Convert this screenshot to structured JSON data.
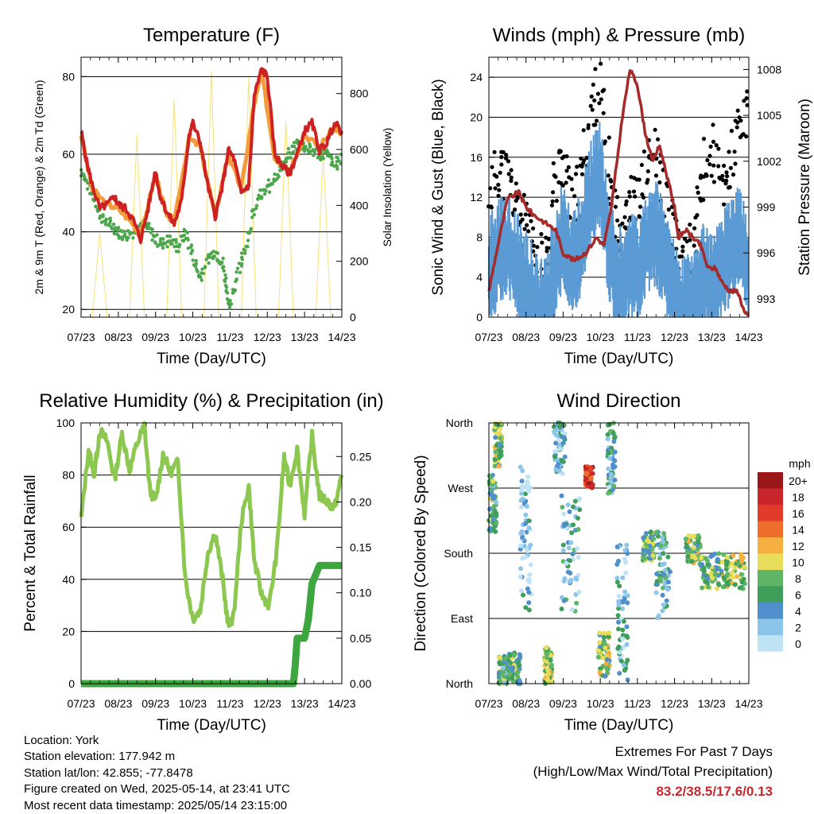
{
  "xticks": [
    "07/23",
    "08/23",
    "09/23",
    "10/23",
    "11/23",
    "12/23",
    "13/23",
    "14/23"
  ],
  "xlabel": "Time (Day/UTC)",
  "info": {
    "location": "Location: York",
    "elevation": "Station elevation: 177.942 m",
    "latlon": "Station lat/lon: 42.855; -77.8478",
    "created": "Figure created on Wed, 2025-05-14, at 23:41 UTC",
    "recent": "Most recent data timestamp: 2025/05/14 23:15:00"
  },
  "extremes": {
    "title": "Extremes For Past 7 Days",
    "subtitle": "(High/Low/Max Wind/Total Precipitation)",
    "values": "83.2/38.5/17.6/0.13"
  },
  "colors": {
    "temp2m": "#cc2222",
    "temp9m": "#f39a3a",
    "dewpoint": "#4ca64c",
    "solar": "#f6e27a",
    "wind": "#5b9bd5",
    "gust": "#000000",
    "pressure": "#a52a2a",
    "rh": "#8cc850",
    "precip": "#3ea63e"
  },
  "chart_data": [
    {
      "id": "temp",
      "type": "line",
      "title": "Temperature (F)",
      "xlabel": "Time (Day/UTC)",
      "ylabel": "2m & 9m T (Red, Orange) & 2m Td (Green)",
      "y2label": "Solar Insolation (Yellow)",
      "xlim": [
        0,
        7
      ],
      "ylim": [
        18,
        85
      ],
      "yticks": [
        20,
        40,
        60,
        80
      ],
      "y2lim": [
        0,
        930
      ],
      "y2ticks": [
        0,
        200,
        400,
        600,
        800
      ],
      "series": [
        {
          "name": "2m T",
          "color": "#cc2222",
          "x": [
            0,
            0.15,
            0.3,
            0.5,
            0.7,
            0.9,
            1.0,
            1.2,
            1.4,
            1.6,
            1.8,
            2.0,
            2.1,
            2.3,
            2.5,
            2.7,
            2.9,
            3.0,
            3.2,
            3.4,
            3.6,
            3.8,
            3.95,
            4.1,
            4.3,
            4.5,
            4.65,
            4.85,
            5.0,
            5.2,
            5.4,
            5.6,
            5.8,
            6.0,
            6.2,
            6.4,
            6.6,
            6.8,
            7.0
          ],
          "y": [
            66,
            58,
            52,
            46,
            47,
            49,
            47,
            46,
            43,
            38,
            46,
            56,
            50,
            45,
            42,
            48,
            65,
            68,
            63,
            52,
            44,
            52,
            61,
            59,
            50,
            52,
            75,
            82,
            80,
            60,
            57,
            55,
            60,
            66,
            68,
            61,
            63,
            68,
            66
          ]
        },
        {
          "name": "9m T",
          "color": "#f39a3a",
          "x": [
            0,
            0.3,
            0.7,
            1.0,
            1.4,
            1.6,
            2.0,
            2.3,
            2.5,
            2.9,
            3.2,
            3.6,
            3.95,
            4.3,
            4.65,
            4.85,
            5.2,
            5.6,
            6.0,
            6.4,
            6.8,
            7.0
          ],
          "y": [
            65,
            51,
            47,
            46,
            42,
            39,
            55,
            44,
            43,
            64,
            62,
            44,
            60,
            51,
            73,
            81,
            59,
            56,
            65,
            62,
            67,
            65
          ]
        },
        {
          "name": "2m Td",
          "color": "#4ca64c",
          "x": [
            0,
            0.2,
            0.4,
            0.6,
            0.8,
            1.0,
            1.2,
            1.4,
            1.6,
            1.8,
            2.0,
            2.2,
            2.4,
            2.6,
            2.8,
            3.0,
            3.2,
            3.4,
            3.6,
            3.8,
            3.9,
            4.0,
            4.2,
            4.4,
            4.6,
            4.8,
            5.0,
            5.2,
            5.4,
            5.6,
            5.8,
            6.0,
            6.2,
            6.4,
            6.6,
            6.8,
            7.0
          ],
          "y": [
            56,
            52,
            47,
            43,
            42,
            40,
            39,
            40,
            42,
            41,
            38,
            37,
            38,
            36,
            40,
            34,
            28,
            33,
            35,
            32,
            26,
            20,
            30,
            35,
            44,
            49,
            51,
            54,
            57,
            60,
            63,
            62,
            61,
            60,
            60,
            57,
            59
          ]
        },
        {
          "name": "Solar",
          "color": "#f6e27a",
          "axis": "y2",
          "x": [
            0,
            0.3,
            0.5,
            0.7,
            1.0,
            1.3,
            1.5,
            1.7,
            2.0,
            2.3,
            2.5,
            2.7,
            3.0,
            3.3,
            3.5,
            3.7,
            4.0,
            4.3,
            4.5,
            4.7,
            5.0,
            5.3,
            5.5,
            5.7,
            6.0,
            6.3,
            6.5,
            6.7,
            7.0
          ],
          "y": [
            0,
            0,
            300,
            0,
            0,
            0,
            650,
            0,
            0,
            0,
            780,
            0,
            0,
            0,
            880,
            0,
            0,
            0,
            860,
            0,
            0,
            0,
            700,
            0,
            0,
            0,
            600,
            0,
            0
          ]
        }
      ]
    },
    {
      "id": "wind",
      "type": "line",
      "title": "Winds (mph) & Pressure (mb)",
      "xlabel": "Time (Day/UTC)",
      "ylabel": "Sonic Wind & Gust (Blue, Black)",
      "y2label": "Station Pressure (Maroon)",
      "xlim": [
        0,
        7
      ],
      "ylim": [
        0,
        26
      ],
      "yticks": [
        0,
        4,
        8,
        12,
        16,
        20,
        24
      ],
      "y2lim": [
        991.8,
        1008.8
      ],
      "y2ticks": [
        993,
        996,
        999,
        1002,
        1005,
        1008
      ],
      "series": [
        {
          "name": "Wind",
          "color": "#5b9bd5",
          "x": [
            0,
            0.25,
            0.5,
            0.75,
            1.0,
            1.25,
            1.5,
            1.75,
            2.0,
            2.25,
            2.5,
            2.75,
            3.0,
            3.25,
            3.5,
            3.75,
            4.0,
            4.25,
            4.5,
            4.75,
            5.0,
            5.25,
            5.5,
            5.75,
            6.0,
            6.25,
            6.5,
            6.75,
            7.0
          ],
          "y": [
            6,
            8,
            9,
            7,
            5,
            3,
            2,
            6,
            10,
            7,
            9,
            14,
            16,
            8,
            5,
            7,
            6,
            9,
            10,
            7,
            4,
            2,
            3,
            6,
            5,
            7,
            8,
            10,
            7
          ]
        },
        {
          "name": "Gust",
          "color": "#000000",
          "x": [
            0,
            0.25,
            0.5,
            0.75,
            1.0,
            1.25,
            1.5,
            1.75,
            2.0,
            2.25,
            2.5,
            2.75,
            3.0,
            3.25,
            3.5,
            3.75,
            4.0,
            4.25,
            4.5,
            4.75,
            5.0,
            5.25,
            5.5,
            5.75,
            6.0,
            6.25,
            6.5,
            6.75,
            7.0
          ],
          "y": [
            12,
            15,
            14,
            11,
            9,
            6,
            5,
            13,
            16,
            11,
            14,
            21,
            23,
            13,
            9,
            12,
            11,
            15,
            16,
            12,
            8,
            5,
            7,
            14,
            17,
            13,
            15,
            19,
            20
          ]
        },
        {
          "name": "Pressure",
          "color": "#a52a2a",
          "axis": "y2",
          "x": [
            0,
            0.2,
            0.5,
            0.8,
            1.0,
            1.2,
            1.5,
            1.8,
            2.0,
            2.3,
            2.6,
            2.9,
            3.1,
            3.3,
            3.6,
            3.8,
            4.0,
            4.2,
            4.4,
            4.6,
            4.8,
            5.0,
            5.1,
            5.3,
            5.5,
            5.7,
            5.9,
            6.1,
            6.3,
            6.5,
            6.7,
            6.9,
            7.0
          ],
          "y": [
            993.5,
            996,
            999.5,
            1000,
            999,
            998.5,
            998,
            997.5,
            996,
            995.5,
            996,
            997,
            996.5,
            999,
            1005,
            1008,
            1007,
            1004,
            1002,
            1003,
            1001,
            999,
            997,
            997.5,
            997,
            996.5,
            995,
            995,
            994,
            993.5,
            993.5,
            992,
            992
          ]
        }
      ]
    },
    {
      "id": "rh",
      "type": "line",
      "title": "Relative Humidity (%) & Precipitation (in)",
      "xlabel": "Time (Day/UTC)",
      "ylabel": "Percent & Total Rainfall",
      "xlim": [
        0,
        7
      ],
      "ylim": [
        0,
        100
      ],
      "yticks": [
        0,
        20,
        40,
        60,
        80,
        100
      ],
      "y2lim": [
        0,
        0.287
      ],
      "y2ticks": [
        "0.00",
        "0.05",
        "0.10",
        "0.15",
        "0.20",
        "0.25"
      ],
      "series": [
        {
          "name": "RH",
          "color": "#8cc850",
          "x": [
            0,
            0.2,
            0.35,
            0.5,
            0.7,
            0.9,
            1.1,
            1.3,
            1.5,
            1.7,
            1.85,
            2.0,
            2.2,
            2.4,
            2.6,
            2.8,
            3.0,
            3.2,
            3.4,
            3.6,
            3.8,
            3.95,
            4.1,
            4.3,
            4.5,
            4.65,
            4.85,
            5.05,
            5.25,
            5.45,
            5.6,
            5.8,
            6.0,
            6.2,
            6.4,
            6.6,
            6.8,
            7.0
          ],
          "y": [
            63,
            90,
            80,
            97,
            93,
            78,
            96,
            82,
            92,
            99,
            74,
            70,
            88,
            81,
            85,
            40,
            25,
            28,
            50,
            58,
            40,
            22,
            26,
            62,
            76,
            47,
            34,
            30,
            50,
            87,
            76,
            90,
            65,
            95,
            72,
            70,
            67,
            80
          ]
        },
        {
          "name": "Precip",
          "color": "#3ea63e",
          "axis": "y2",
          "x": [
            0,
            5.7,
            5.75,
            5.8,
            6.0,
            6.1,
            6.15,
            6.2,
            6.3,
            6.4,
            7.0
          ],
          "y": [
            0,
            0,
            0.02,
            0.05,
            0.05,
            0.07,
            0.09,
            0.11,
            0.12,
            0.13,
            0.13
          ]
        }
      ]
    },
    {
      "id": "dir",
      "type": "scatter",
      "title": "Wind Direction",
      "xlabel": "Time (Day/UTC)",
      "ylabel": "Direction (Colored By Speed)",
      "xlim": [
        0,
        7
      ],
      "ylim": [
        0,
        360
      ],
      "yticks": [
        "North",
        "East",
        "South",
        "West",
        "North"
      ],
      "colorbar": {
        "unit": "mph",
        "labels": [
          "0",
          "2",
          "4",
          "6",
          "8",
          "10",
          "12",
          "14",
          "16",
          "18",
          "20+"
        ],
        "colors": [
          "#bde3f5",
          "#8cc4ea",
          "#4f8fcb",
          "#3e9e5a",
          "#5eb566",
          "#e6de5a",
          "#f6b042",
          "#f06e2c",
          "#e23b2a",
          "#c8262a",
          "#9b1717"
        ]
      },
      "clusters": [
        {
          "x": 0.1,
          "y": 250,
          "dx": 0.1,
          "dy": 40,
          "s": 6
        },
        {
          "x": 0.25,
          "y": 330,
          "dx": 0.1,
          "dy": 30,
          "s": 8
        },
        {
          "x": 0.4,
          "y": 18,
          "dx": 0.15,
          "dy": 20,
          "s": 6
        },
        {
          "x": 0.7,
          "y": 20,
          "dx": 0.15,
          "dy": 25,
          "s": 7
        },
        {
          "x": 1.0,
          "y": 200,
          "dx": 0.15,
          "dy": 100,
          "s": 2
        },
        {
          "x": 1.6,
          "y": 25,
          "dx": 0.1,
          "dy": 25,
          "s": 9
        },
        {
          "x": 1.9,
          "y": 330,
          "dx": 0.15,
          "dy": 40,
          "s": 3
        },
        {
          "x": 2.2,
          "y": 180,
          "dx": 0.25,
          "dy": 80,
          "s": 4
        },
        {
          "x": 2.7,
          "y": 285,
          "dx": 0.1,
          "dy": 15,
          "s": 17
        },
        {
          "x": 3.1,
          "y": 40,
          "dx": 0.15,
          "dy": 30,
          "s": 8
        },
        {
          "x": 3.3,
          "y": 310,
          "dx": 0.1,
          "dy": 50,
          "s": 4
        },
        {
          "x": 3.6,
          "y": 100,
          "dx": 0.15,
          "dy": 100,
          "s": 3
        },
        {
          "x": 4.3,
          "y": 190,
          "dx": 0.15,
          "dy": 20,
          "s": 7
        },
        {
          "x": 4.7,
          "y": 150,
          "dx": 0.2,
          "dy": 60,
          "s": 5
        },
        {
          "x": 5.5,
          "y": 185,
          "dx": 0.2,
          "dy": 20,
          "s": 8
        },
        {
          "x": 6.0,
          "y": 155,
          "dx": 0.3,
          "dy": 25,
          "s": 7
        },
        {
          "x": 6.6,
          "y": 155,
          "dx": 0.3,
          "dy": 25,
          "s": 9
        }
      ]
    }
  ]
}
